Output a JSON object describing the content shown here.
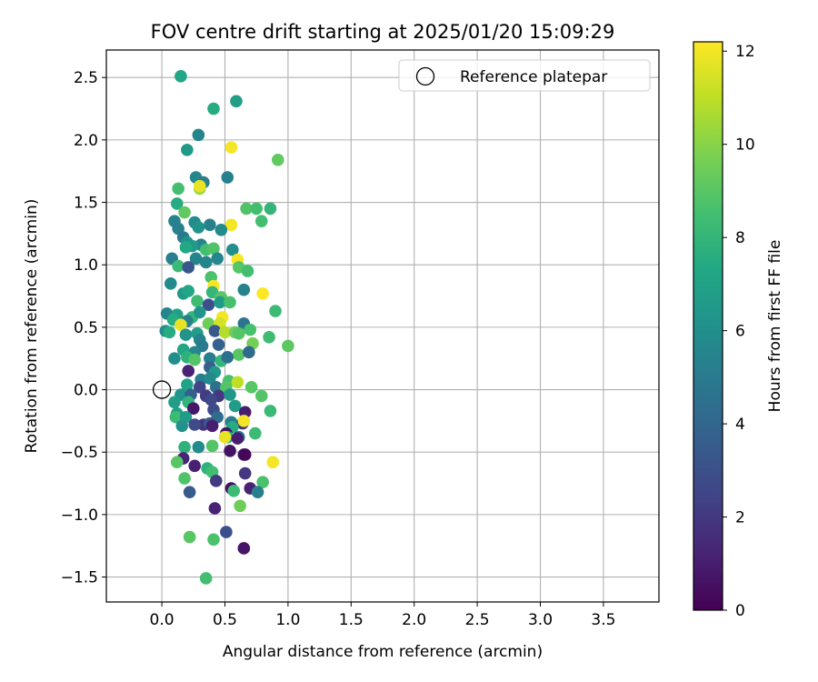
{
  "chart_data": {
    "type": "scatter",
    "title": "FOV centre drift starting at 2025/01/20 15:09:29",
    "xlabel": "Angular distance from reference (arcmin)",
    "ylabel": "Rotation from reference (arcmin)",
    "xlim": [
      -0.44,
      3.94
    ],
    "ylim": [
      -1.7,
      2.72
    ],
    "x_ticks": [
      0.0,
      0.5,
      1.0,
      1.5,
      2.0,
      2.5,
      3.0,
      3.5
    ],
    "x_tick_labels": [
      "0.0",
      "0.5",
      "1.0",
      "1.5",
      "2.0",
      "2.5",
      "3.0",
      "3.5"
    ],
    "y_ticks": [
      -1.5,
      -1.0,
      -0.5,
      0.0,
      0.5,
      1.0,
      1.5,
      2.0,
      2.5
    ],
    "y_tick_labels": [
      "−1.5",
      "−1.0",
      "−0.5",
      "0.0",
      "0.5",
      "1.0",
      "1.5",
      "2.0",
      "2.5"
    ],
    "grid": true,
    "legend": {
      "position": "top-right",
      "entries": [
        "Reference platepar"
      ]
    },
    "reference_point": {
      "x": 0.0,
      "y": 0.0,
      "label": "Reference platepar"
    },
    "colorbar": {
      "label": "Hours from first FF file",
      "colormap": "viridis",
      "range": [
        0,
        12.2
      ],
      "ticks": [
        0,
        2,
        4,
        6,
        8,
        10,
        12
      ],
      "tick_labels": [
        "0",
        "2",
        "4",
        "6",
        "8",
        "10",
        "12"
      ]
    },
    "points": [
      {
        "x": 0.15,
        "y": 2.51,
        "h": 7.2
      },
      {
        "x": 0.59,
        "y": 2.31,
        "h": 6.8
      },
      {
        "x": 0.41,
        "y": 2.25,
        "h": 7.5
      },
      {
        "x": 0.29,
        "y": 2.04,
        "h": 5.5
      },
      {
        "x": 0.2,
        "y": 1.92,
        "h": 6.5
      },
      {
        "x": 0.55,
        "y": 1.94,
        "h": 12.0
      },
      {
        "x": 0.92,
        "y": 1.84,
        "h": 9.2
      },
      {
        "x": 0.27,
        "y": 1.7,
        "h": 5.6
      },
      {
        "x": 0.33,
        "y": 1.66,
        "h": 5.2
      },
      {
        "x": 0.52,
        "y": 1.7,
        "h": 5.3
      },
      {
        "x": 0.13,
        "y": 1.61,
        "h": 8.5
      },
      {
        "x": 0.3,
        "y": 1.61,
        "h": 10.3
      },
      {
        "x": 0.3,
        "y": 1.63,
        "h": 11.8
      },
      {
        "x": 0.12,
        "y": 1.49,
        "h": 7.5
      },
      {
        "x": 0.18,
        "y": 1.42,
        "h": 9.2
      },
      {
        "x": 0.67,
        "y": 1.45,
        "h": 8.8
      },
      {
        "x": 0.75,
        "y": 1.45,
        "h": 8.5
      },
      {
        "x": 0.86,
        "y": 1.45,
        "h": 8.0
      },
      {
        "x": 0.1,
        "y": 1.35,
        "h": 5.4
      },
      {
        "x": 0.26,
        "y": 1.34,
        "h": 5.8
      },
      {
        "x": 0.38,
        "y": 1.32,
        "h": 5.3
      },
      {
        "x": 0.55,
        "y": 1.32,
        "h": 12.0
      },
      {
        "x": 0.79,
        "y": 1.35,
        "h": 8.5
      },
      {
        "x": 0.13,
        "y": 1.29,
        "h": 5.2
      },
      {
        "x": 0.29,
        "y": 1.3,
        "h": 6.2
      },
      {
        "x": 0.47,
        "y": 1.28,
        "h": 5.8
      },
      {
        "x": 0.17,
        "y": 1.22,
        "h": 5.0
      },
      {
        "x": 0.2,
        "y": 1.18,
        "h": 6.2
      },
      {
        "x": 0.31,
        "y": 1.16,
        "h": 5.5
      },
      {
        "x": 0.24,
        "y": 1.15,
        "h": 6.6
      },
      {
        "x": 0.19,
        "y": 1.14,
        "h": 7.3
      },
      {
        "x": 0.35,
        "y": 1.12,
        "h": 8.5
      },
      {
        "x": 0.41,
        "y": 1.13,
        "h": 8.8
      },
      {
        "x": 0.56,
        "y": 1.12,
        "h": 6.0
      },
      {
        "x": 0.08,
        "y": 1.05,
        "h": 5.2
      },
      {
        "x": 0.27,
        "y": 1.05,
        "h": 5.5
      },
      {
        "x": 0.44,
        "y": 1.05,
        "h": 5.6
      },
      {
        "x": 0.6,
        "y": 1.04,
        "h": 12.1
      },
      {
        "x": 0.13,
        "y": 0.99,
        "h": 8.2
      },
      {
        "x": 0.21,
        "y": 0.98,
        "h": 3.2
      },
      {
        "x": 0.35,
        "y": 1.02,
        "h": 5.5
      },
      {
        "x": 0.61,
        "y": 0.98,
        "h": 9.0
      },
      {
        "x": 0.68,
        "y": 0.95,
        "h": 8.5
      },
      {
        "x": 0.39,
        "y": 0.9,
        "h": 8.7
      },
      {
        "x": 0.07,
        "y": 0.85,
        "h": 5.8
      },
      {
        "x": 0.41,
        "y": 0.83,
        "h": 12.1
      },
      {
        "x": 0.17,
        "y": 0.77,
        "h": 6.6
      },
      {
        "x": 0.21,
        "y": 0.79,
        "h": 7.2
      },
      {
        "x": 0.4,
        "y": 0.78,
        "h": 8.0
      },
      {
        "x": 0.65,
        "y": 0.8,
        "h": 5.4
      },
      {
        "x": 0.8,
        "y": 0.77,
        "h": 12.2
      },
      {
        "x": 0.47,
        "y": 0.74,
        "h": 9.0
      },
      {
        "x": 0.28,
        "y": 0.71,
        "h": 8.4
      },
      {
        "x": 0.37,
        "y": 0.68,
        "h": 3.0
      },
      {
        "x": 0.46,
        "y": 0.7,
        "h": 6.7
      },
      {
        "x": 0.54,
        "y": 0.7,
        "h": 8.6
      },
      {
        "x": 0.04,
        "y": 0.61,
        "h": 5.5
      },
      {
        "x": 0.12,
        "y": 0.6,
        "h": 6.9
      },
      {
        "x": 0.24,
        "y": 0.58,
        "h": 8.0
      },
      {
        "x": 0.3,
        "y": 0.62,
        "h": 6.3
      },
      {
        "x": 0.48,
        "y": 0.58,
        "h": 12.0
      },
      {
        "x": 0.9,
        "y": 0.63,
        "h": 8.3
      },
      {
        "x": 0.09,
        "y": 0.56,
        "h": 7.5
      },
      {
        "x": 0.2,
        "y": 0.55,
        "h": 5.3
      },
      {
        "x": 0.15,
        "y": 0.52,
        "h": 11.8
      },
      {
        "x": 0.37,
        "y": 0.53,
        "h": 9.5
      },
      {
        "x": 0.46,
        "y": 0.53,
        "h": 11.4
      },
      {
        "x": 0.65,
        "y": 0.53,
        "h": 4.8
      },
      {
        "x": 0.03,
        "y": 0.47,
        "h": 6.0
      },
      {
        "x": 0.06,
        "y": 0.46,
        "h": 7.5
      },
      {
        "x": 0.19,
        "y": 0.44,
        "h": 6.2
      },
      {
        "x": 0.28,
        "y": 0.45,
        "h": 6.8
      },
      {
        "x": 0.42,
        "y": 0.47,
        "h": 3.3
      },
      {
        "x": 0.5,
        "y": 0.46,
        "h": 10.8
      },
      {
        "x": 0.58,
        "y": 0.46,
        "h": 9.5
      },
      {
        "x": 0.61,
        "y": 0.45,
        "h": 8.9
      },
      {
        "x": 0.7,
        "y": 0.48,
        "h": 8.6
      },
      {
        "x": 0.3,
        "y": 0.4,
        "h": 5.4
      },
      {
        "x": 0.32,
        "y": 0.35,
        "h": 5.0
      },
      {
        "x": 0.45,
        "y": 0.36,
        "h": 3.8
      },
      {
        "x": 0.72,
        "y": 0.37,
        "h": 9.6
      },
      {
        "x": 0.85,
        "y": 0.42,
        "h": 8.4
      },
      {
        "x": 1.0,
        "y": 0.35,
        "h": 9.1
      },
      {
        "x": 0.17,
        "y": 0.32,
        "h": 7.2
      },
      {
        "x": 0.26,
        "y": 0.3,
        "h": 5.6
      },
      {
        "x": 0.61,
        "y": 0.28,
        "h": 9.0
      },
      {
        "x": 0.69,
        "y": 0.3,
        "h": 4.2
      },
      {
        "x": 0.1,
        "y": 0.25,
        "h": 6.0
      },
      {
        "x": 0.2,
        "y": 0.26,
        "h": 7.8
      },
      {
        "x": 0.26,
        "y": 0.24,
        "h": 8.9
      },
      {
        "x": 0.38,
        "y": 0.25,
        "h": 5.2
      },
      {
        "x": 0.47,
        "y": 0.23,
        "h": 8.0
      },
      {
        "x": 0.52,
        "y": 0.26,
        "h": 4.5
      },
      {
        "x": 0.38,
        "y": 0.18,
        "h": 3.8
      },
      {
        "x": 0.21,
        "y": 0.15,
        "h": 1.2
      },
      {
        "x": 0.42,
        "y": 0.14,
        "h": 6.5
      },
      {
        "x": 0.31,
        "y": 0.08,
        "h": 5.2
      },
      {
        "x": 0.38,
        "y": 0.09,
        "h": 5.8
      },
      {
        "x": 0.53,
        "y": 0.07,
        "h": 8.6
      },
      {
        "x": 0.6,
        "y": 0.06,
        "h": 11.0
      },
      {
        "x": 0.2,
        "y": 0.04,
        "h": 7.0
      },
      {
        "x": 0.3,
        "y": 0.02,
        "h": 2.5
      },
      {
        "x": 0.43,
        "y": 0.02,
        "h": 4.5
      },
      {
        "x": 0.51,
        "y": 0.02,
        "h": 8.9
      },
      {
        "x": 0.71,
        "y": 0.02,
        "h": 9.0
      },
      {
        "x": 0.15,
        "y": -0.04,
        "h": 6.3
      },
      {
        "x": 0.23,
        "y": -0.04,
        "h": 3.7
      },
      {
        "x": 0.35,
        "y": -0.05,
        "h": 2.1
      },
      {
        "x": 0.45,
        "y": -0.05,
        "h": 2.0
      },
      {
        "x": 0.54,
        "y": -0.04,
        "h": 6.4
      },
      {
        "x": 0.79,
        "y": -0.05,
        "h": 8.9
      },
      {
        "x": 0.1,
        "y": -0.1,
        "h": 6.8
      },
      {
        "x": 0.21,
        "y": -0.1,
        "h": 7.9
      },
      {
        "x": 0.39,
        "y": -0.08,
        "h": 2.6
      },
      {
        "x": 0.58,
        "y": -0.13,
        "h": 6.7
      },
      {
        "x": 0.86,
        "y": -0.17,
        "h": 8.2
      },
      {
        "x": 0.12,
        "y": -0.19,
        "h": 6.9
      },
      {
        "x": 0.25,
        "y": -0.15,
        "h": 0.8
      },
      {
        "x": 0.41,
        "y": -0.16,
        "h": 2.8
      },
      {
        "x": 0.66,
        "y": -0.18,
        "h": 1.0
      },
      {
        "x": 0.11,
        "y": -0.22,
        "h": 8.3
      },
      {
        "x": 0.19,
        "y": -0.22,
        "h": 6.7
      },
      {
        "x": 0.44,
        "y": -0.22,
        "h": 4.3
      },
      {
        "x": 0.33,
        "y": -0.28,
        "h": 1.8
      },
      {
        "x": 0.38,
        "y": -0.27,
        "h": 3.5
      },
      {
        "x": 0.55,
        "y": -0.26,
        "h": 5.1
      },
      {
        "x": 0.64,
        "y": -0.27,
        "h": 1.7
      },
      {
        "x": 0.65,
        "y": -0.25,
        "h": 12.0
      },
      {
        "x": 0.16,
        "y": -0.29,
        "h": 6.2
      },
      {
        "x": 0.26,
        "y": -0.28,
        "h": 2.8
      },
      {
        "x": 0.4,
        "y": -0.29,
        "h": 1.0
      },
      {
        "x": 0.56,
        "y": -0.3,
        "h": 7.5
      },
      {
        "x": 0.51,
        "y": -0.35,
        "h": 0.7
      },
      {
        "x": 0.61,
        "y": -0.38,
        "h": 5.2
      },
      {
        "x": 0.52,
        "y": -0.38,
        "h": 7.6
      },
      {
        "x": 0.74,
        "y": -0.35,
        "h": 8.3
      },
      {
        "x": 0.5,
        "y": -0.38,
        "h": 11.8
      },
      {
        "x": 0.6,
        "y": -0.39,
        "h": 1.0
      },
      {
        "x": 0.18,
        "y": -0.46,
        "h": 7.8
      },
      {
        "x": 0.29,
        "y": -0.46,
        "h": 5.8
      },
      {
        "x": 0.4,
        "y": -0.45,
        "h": 8.9
      },
      {
        "x": 0.54,
        "y": -0.49,
        "h": 0.6
      },
      {
        "x": 0.65,
        "y": -0.52,
        "h": 0.9
      },
      {
        "x": 0.66,
        "y": -0.52,
        "h": 0.2
      },
      {
        "x": 0.17,
        "y": -0.55,
        "h": 1.3
      },
      {
        "x": 0.12,
        "y": -0.58,
        "h": 9.0
      },
      {
        "x": 0.88,
        "y": -0.58,
        "h": 12.0
      },
      {
        "x": 0.26,
        "y": -0.61,
        "h": 1.1
      },
      {
        "x": 0.36,
        "y": -0.63,
        "h": 7.8
      },
      {
        "x": 0.4,
        "y": -0.66,
        "h": 8.5
      },
      {
        "x": 0.66,
        "y": -0.67,
        "h": 1.9
      },
      {
        "x": 0.18,
        "y": -0.71,
        "h": 8.8
      },
      {
        "x": 0.43,
        "y": -0.73,
        "h": 2.1
      },
      {
        "x": 0.8,
        "y": -0.74,
        "h": 8.7
      },
      {
        "x": 0.55,
        "y": -0.79,
        "h": 0.5
      },
      {
        "x": 0.7,
        "y": -0.79,
        "h": 1.2
      },
      {
        "x": 0.76,
        "y": -0.82,
        "h": 5.2
      },
      {
        "x": 0.22,
        "y": -0.82,
        "h": 3.5
      },
      {
        "x": 0.57,
        "y": -0.81,
        "h": 8.3
      },
      {
        "x": 0.42,
        "y": -0.95,
        "h": 1.2
      },
      {
        "x": 0.62,
        "y": -0.93,
        "h": 9.5
      },
      {
        "x": 0.51,
        "y": -1.14,
        "h": 3.0
      },
      {
        "x": 0.22,
        "y": -1.18,
        "h": 9.0
      },
      {
        "x": 0.41,
        "y": -1.2,
        "h": 8.7
      },
      {
        "x": 0.65,
        "y": -1.27,
        "h": 0.7
      },
      {
        "x": 0.35,
        "y": -1.51,
        "h": 8.5
      }
    ]
  }
}
